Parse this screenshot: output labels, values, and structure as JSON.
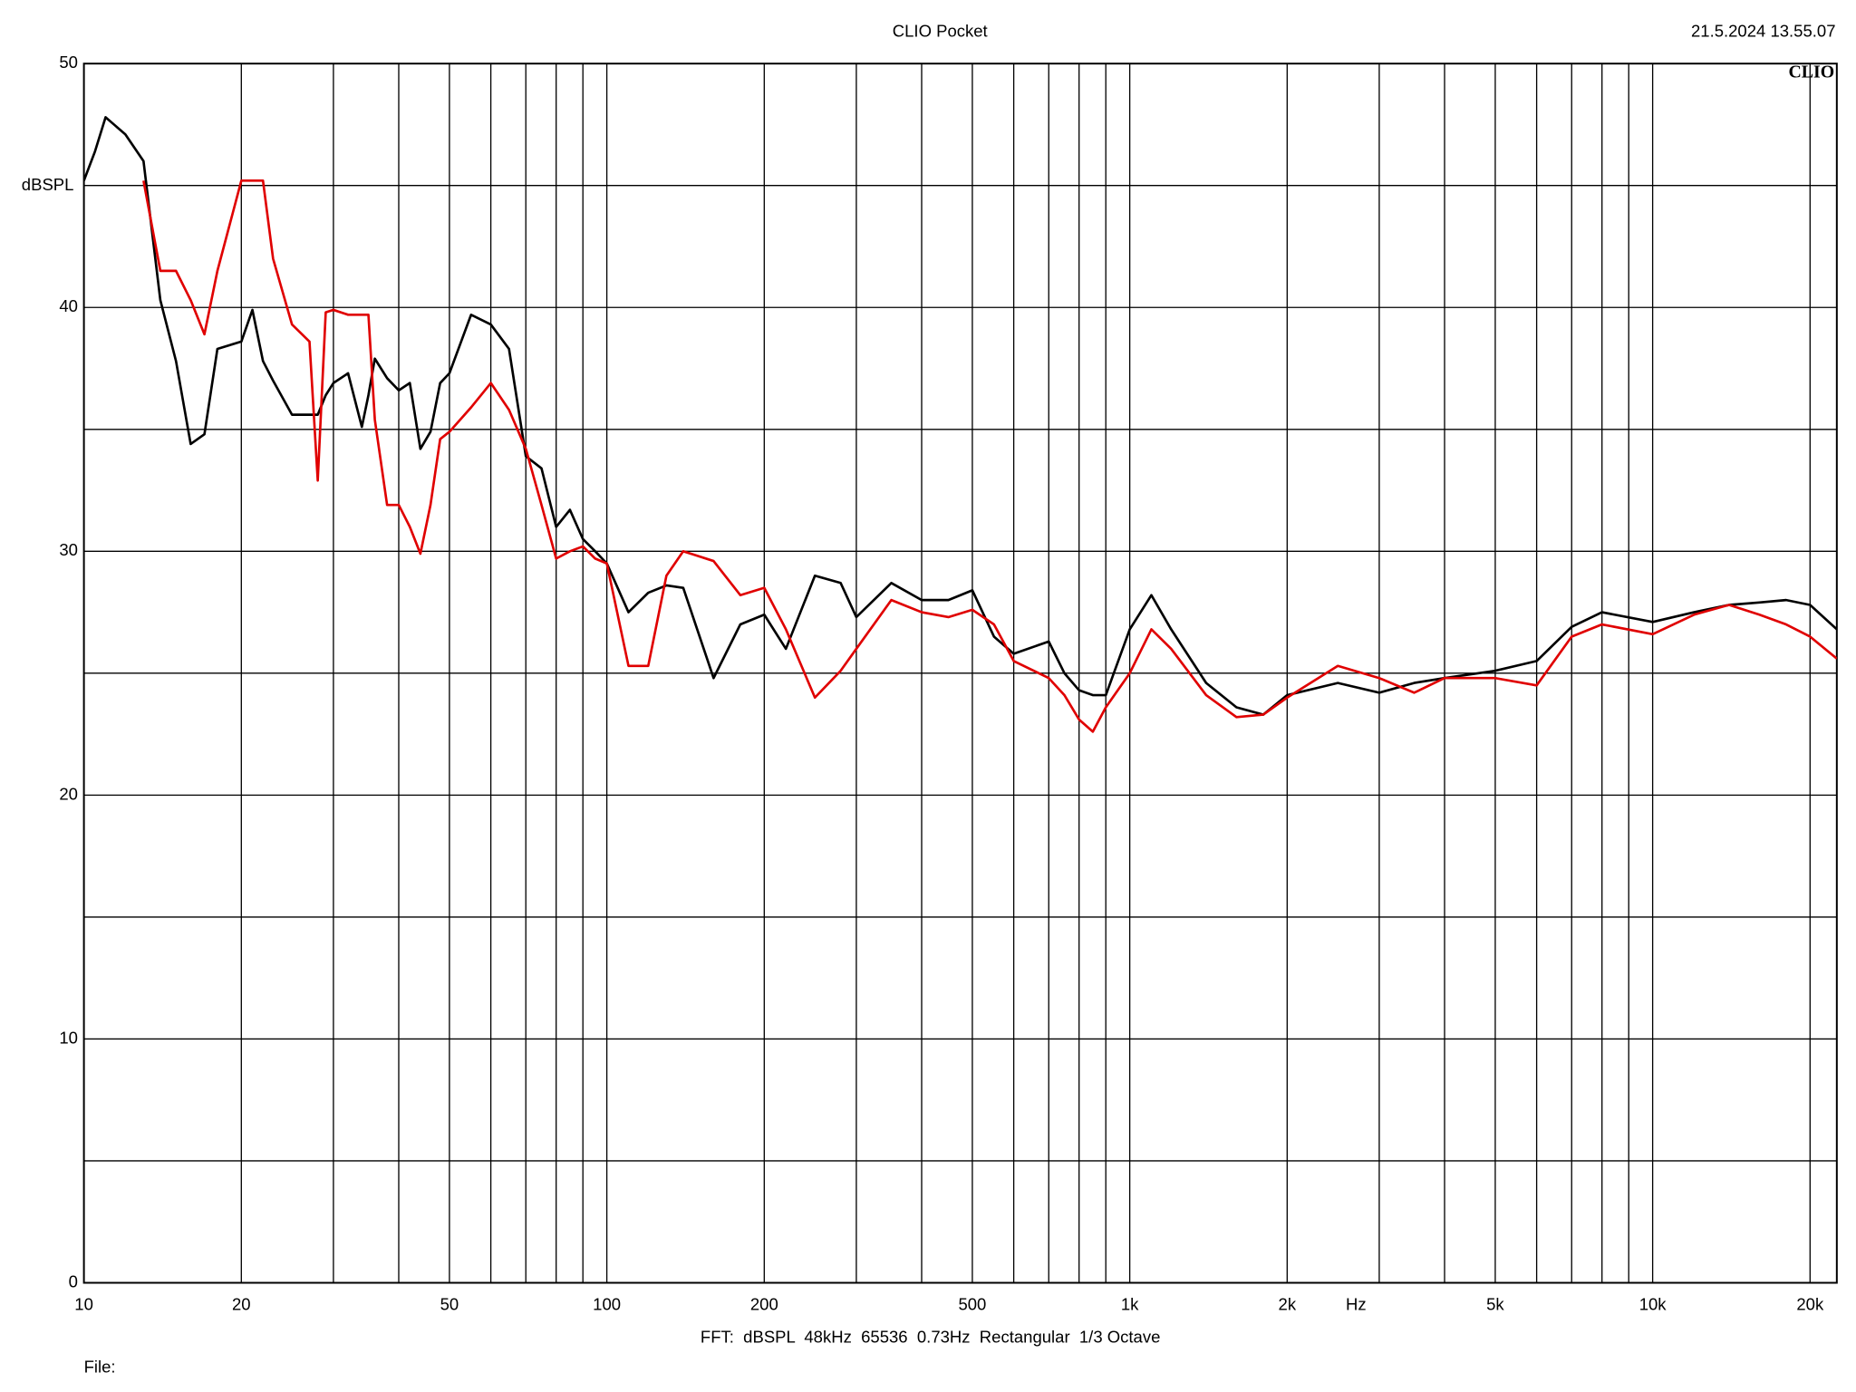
{
  "chart_data": {
    "type": "line",
    "title": "CLIO Pocket",
    "timestamp": "21.5.2024 13.55.07",
    "logo": "CLIO",
    "y_label": "dBSPL",
    "x_label": "Hz",
    "footer": "FFT:  dBSPL  48kHz  65536  0.73Hz  Rectangular  1/3 Octave",
    "file_label": "File:",
    "log_x": true,
    "grid": true,
    "xlim": [
      10,
      22500
    ],
    "ylim": [
      0,
      50
    ],
    "xticks": [
      10,
      20,
      50,
      100,
      200,
      500,
      {
        "value": 1000,
        "label": "1k"
      },
      {
        "value": 2000,
        "label": "2k"
      },
      {
        "value": 5000,
        "label": "5k"
      },
      {
        "value": 10000,
        "label": "10k"
      },
      {
        "value": 20000,
        "label": "20k"
      }
    ],
    "xminor": [
      30,
      40,
      60,
      70,
      80,
      90,
      300,
      400,
      600,
      700,
      800,
      900,
      3000,
      4000,
      6000,
      7000,
      8000,
      9000
    ],
    "yticks": [
      0,
      10,
      20,
      30,
      40,
      50
    ],
    "yminor": [
      5,
      15,
      25,
      35,
      45
    ],
    "x": [
      10,
      10.5,
      11,
      12,
      13,
      14,
      15,
      16,
      17,
      18,
      20,
      21,
      22,
      23,
      25,
      27,
      28,
      29,
      30,
      32,
      34,
      35,
      36,
      38,
      40,
      42,
      44,
      46,
      48,
      50,
      55,
      60,
      65,
      70,
      75,
      80,
      85,
      90,
      95,
      100,
      110,
      120,
      130,
      140,
      160,
      180,
      200,
      220,
      250,
      280,
      300,
      350,
      400,
      450,
      500,
      550,
      600,
      700,
      750,
      800,
      850,
      900,
      1000,
      1100,
      1200,
      1400,
      1600,
      1800,
      2000,
      2500,
      3000,
      3500,
      4000,
      5000,
      6000,
      7000,
      8000,
      10000,
      12000,
      14000,
      16000,
      18000,
      20000,
      22500
    ],
    "series": [
      {
        "color": "#000000",
        "values": [
          45.2,
          46.4,
          47.8,
          47.1,
          46.0,
          40.3,
          37.8,
          34.4,
          34.8,
          38.3,
          38.6,
          39.9,
          37.8,
          37.0,
          35.6,
          35.6,
          35.6,
          36.4,
          36.9,
          37.3,
          35.1,
          36.4,
          37.9,
          37.1,
          36.6,
          36.9,
          34.2,
          34.9,
          36.9,
          37.3,
          39.7,
          39.3,
          38.3,
          33.9,
          33.4,
          31.0,
          31.7,
          30.5,
          30.0,
          29.5,
          27.5,
          28.3,
          28.6,
          28.5,
          24.8,
          27.0,
          27.4,
          26.0,
          29.0,
          28.7,
          27.3,
          28.7,
          28.0,
          28.0,
          28.4,
          26.5,
          25.8,
          26.3,
          25.0,
          24.3,
          24.1,
          24.1,
          26.8,
          28.2,
          26.8,
          24.6,
          23.6,
          23.3,
          24.1,
          24.6,
          24.2,
          24.6,
          24.8,
          25.1,
          25.5,
          26.9,
          27.5,
          27.1,
          27.5,
          27.8,
          27.9,
          28.0,
          27.8,
          26.8
        ]
      },
      {
        "color": "#e00000",
        "values": [
          null,
          null,
          null,
          null,
          45.2,
          41.5,
          41.5,
          40.3,
          38.9,
          41.5,
          45.2,
          45.2,
          45.2,
          42.0,
          39.3,
          38.6,
          32.9,
          39.8,
          39.9,
          39.7,
          39.7,
          39.7,
          35.4,
          31.9,
          31.9,
          31.0,
          29.9,
          31.9,
          34.6,
          34.9,
          35.9,
          36.9,
          35.8,
          34.2,
          31.9,
          29.7,
          30.0,
          30.2,
          29.7,
          29.5,
          25.3,
          25.3,
          29.0,
          30.0,
          29.6,
          28.2,
          28.5,
          26.8,
          24.0,
          25.1,
          26.0,
          28.0,
          27.5,
          27.3,
          27.6,
          27.0,
          25.5,
          24.8,
          24.1,
          23.1,
          22.6,
          23.6,
          25.0,
          26.8,
          26.0,
          24.1,
          23.2,
          23.3,
          24.0,
          25.3,
          24.8,
          24.2,
          24.8,
          24.8,
          24.5,
          26.5,
          27.0,
          26.6,
          27.4,
          27.8,
          27.4,
          27.0,
          26.5,
          25.6
        ]
      }
    ]
  }
}
